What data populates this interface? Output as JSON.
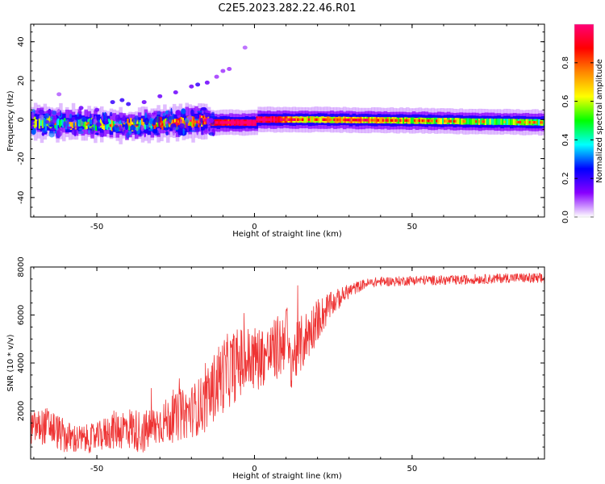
{
  "title": "C2E5.2023.282.22.46.R01",
  "chart_data": [
    {
      "type": "heatmap",
      "xlabel": "Height of straight line (km)",
      "ylabel": "Frequency (Hz)",
      "xlim": [
        -71,
        92
      ],
      "ylim": [
        -50,
        49
      ],
      "xticks": [
        -50,
        0,
        50
      ],
      "yticks": [
        -40,
        -20,
        0,
        20,
        40
      ],
      "grid": false,
      "colorbar": {
        "label": "Normalized spectral amplitude",
        "range": [
          0,
          1
        ],
        "ticks": [
          "0.0",
          "0.2",
          "0.4",
          "0.6",
          "0.8"
        ],
        "tick_values": [
          0,
          0.2,
          0.4,
          0.6,
          0.8
        ],
        "colors": [
          "#ffffff",
          "#8800ff",
          "#0000ff",
          "#00ffff",
          "#00ff00",
          "#ffff00",
          "#ff8800",
          "#ff0000",
          "#ff0077"
        ]
      },
      "ridge": [
        {
          "x": -70,
          "f": -1.5
        },
        {
          "x": -60,
          "f": -2.0
        },
        {
          "x": -50,
          "f": -2.5
        },
        {
          "x": -40,
          "f": -3.0
        },
        {
          "x": -30,
          "f": -2.0
        },
        {
          "x": -20,
          "f": -1.0
        },
        {
          "x": -15,
          "f": 0.0
        },
        {
          "x": -14,
          "f": -1.5
        },
        {
          "x": 0,
          "f": -1.5
        },
        {
          "x": 0,
          "f": 0.0
        },
        {
          "x": 20,
          "f": 0.0
        },
        {
          "x": 50,
          "f": -0.5
        },
        {
          "x": 70,
          "f": -1.0
        },
        {
          "x": 92,
          "f": -1.5
        }
      ],
      "ridge_amplitude": [
        {
          "x": -70,
          "a": 0.45
        },
        {
          "x": -40,
          "a": 0.55
        },
        {
          "x": -20,
          "a": 0.75
        },
        {
          "x": -10,
          "a": 0.9
        },
        {
          "x": 0,
          "a": 1.0
        },
        {
          "x": 5,
          "a": 0.95
        },
        {
          "x": 15,
          "a": 0.6
        },
        {
          "x": 30,
          "a": 0.7
        },
        {
          "x": 60,
          "a": 0.55
        },
        {
          "x": 92,
          "a": 0.5
        }
      ],
      "scatter_blobs": [
        {
          "x": -45,
          "f": 9,
          "a": 0.2
        },
        {
          "x": -42,
          "f": 10,
          "a": 0.2
        },
        {
          "x": -40,
          "f": 8,
          "a": 0.2
        },
        {
          "x": -35,
          "f": 9,
          "a": 0.15
        },
        {
          "x": -30,
          "f": 12,
          "a": 0.15
        },
        {
          "x": -25,
          "f": 14,
          "a": 0.15
        },
        {
          "x": -20,
          "f": 17,
          "a": 0.15
        },
        {
          "x": -18,
          "f": 18,
          "a": 0.2
        },
        {
          "x": -15,
          "f": 19,
          "a": 0.15
        },
        {
          "x": -12,
          "f": 22,
          "a": 0.1
        },
        {
          "x": -10,
          "f": 25,
          "a": 0.1
        },
        {
          "x": -8,
          "f": 26,
          "a": 0.1
        },
        {
          "x": -3,
          "f": 37,
          "a": 0.08
        },
        {
          "x": -62,
          "f": 13,
          "a": 0.08
        },
        {
          "x": -55,
          "f": 6,
          "a": 0.15
        },
        {
          "x": -50,
          "f": 5,
          "a": 0.15
        }
      ]
    },
    {
      "type": "line",
      "xlabel": "Height of straight line (km)",
      "ylabel": "SNR (10 * v/v)",
      "xlim": [
        -71,
        92
      ],
      "ylim": [
        0,
        8000
      ],
      "xticks": [
        -50,
        0,
        50
      ],
      "yticks": [
        2000,
        4000,
        6000,
        8000
      ],
      "grid": false,
      "series": [
        {
          "color": "#ee3333",
          "x": [
            -70,
            -65,
            -60,
            -55,
            -50,
            -45,
            -40,
            -35,
            -30,
            -25,
            -20,
            -15,
            -12,
            -10,
            -5,
            0,
            5,
            9,
            10,
            11,
            15,
            20,
            25,
            30,
            35,
            40,
            45,
            50,
            55,
            60,
            65,
            70,
            75,
            80,
            85,
            90,
            92
          ],
          "y": [
            1300,
            1400,
            900,
            800,
            900,
            1200,
            1300,
            1100,
            1500,
            1700,
            2000,
            2400,
            3200,
            3500,
            4000,
            4200,
            4400,
            4800,
            5800,
            4000,
            4800,
            5800,
            6500,
            7000,
            7300,
            7400,
            7400,
            7450,
            7450,
            7450,
            7450,
            7500,
            7500,
            7550,
            7550,
            7500,
            7500
          ],
          "noise": [
            700,
            800,
            700,
            600,
            600,
            800,
            900,
            900,
            900,
            1000,
            1100,
            1300,
            1500,
            1600,
            1500,
            1400,
            1200,
            1500,
            1300,
            1200,
            1200,
            900,
            500,
            300,
            200,
            200,
            200,
            200,
            200,
            200,
            200,
            200,
            200,
            200,
            200,
            250,
            250
          ]
        }
      ]
    }
  ]
}
